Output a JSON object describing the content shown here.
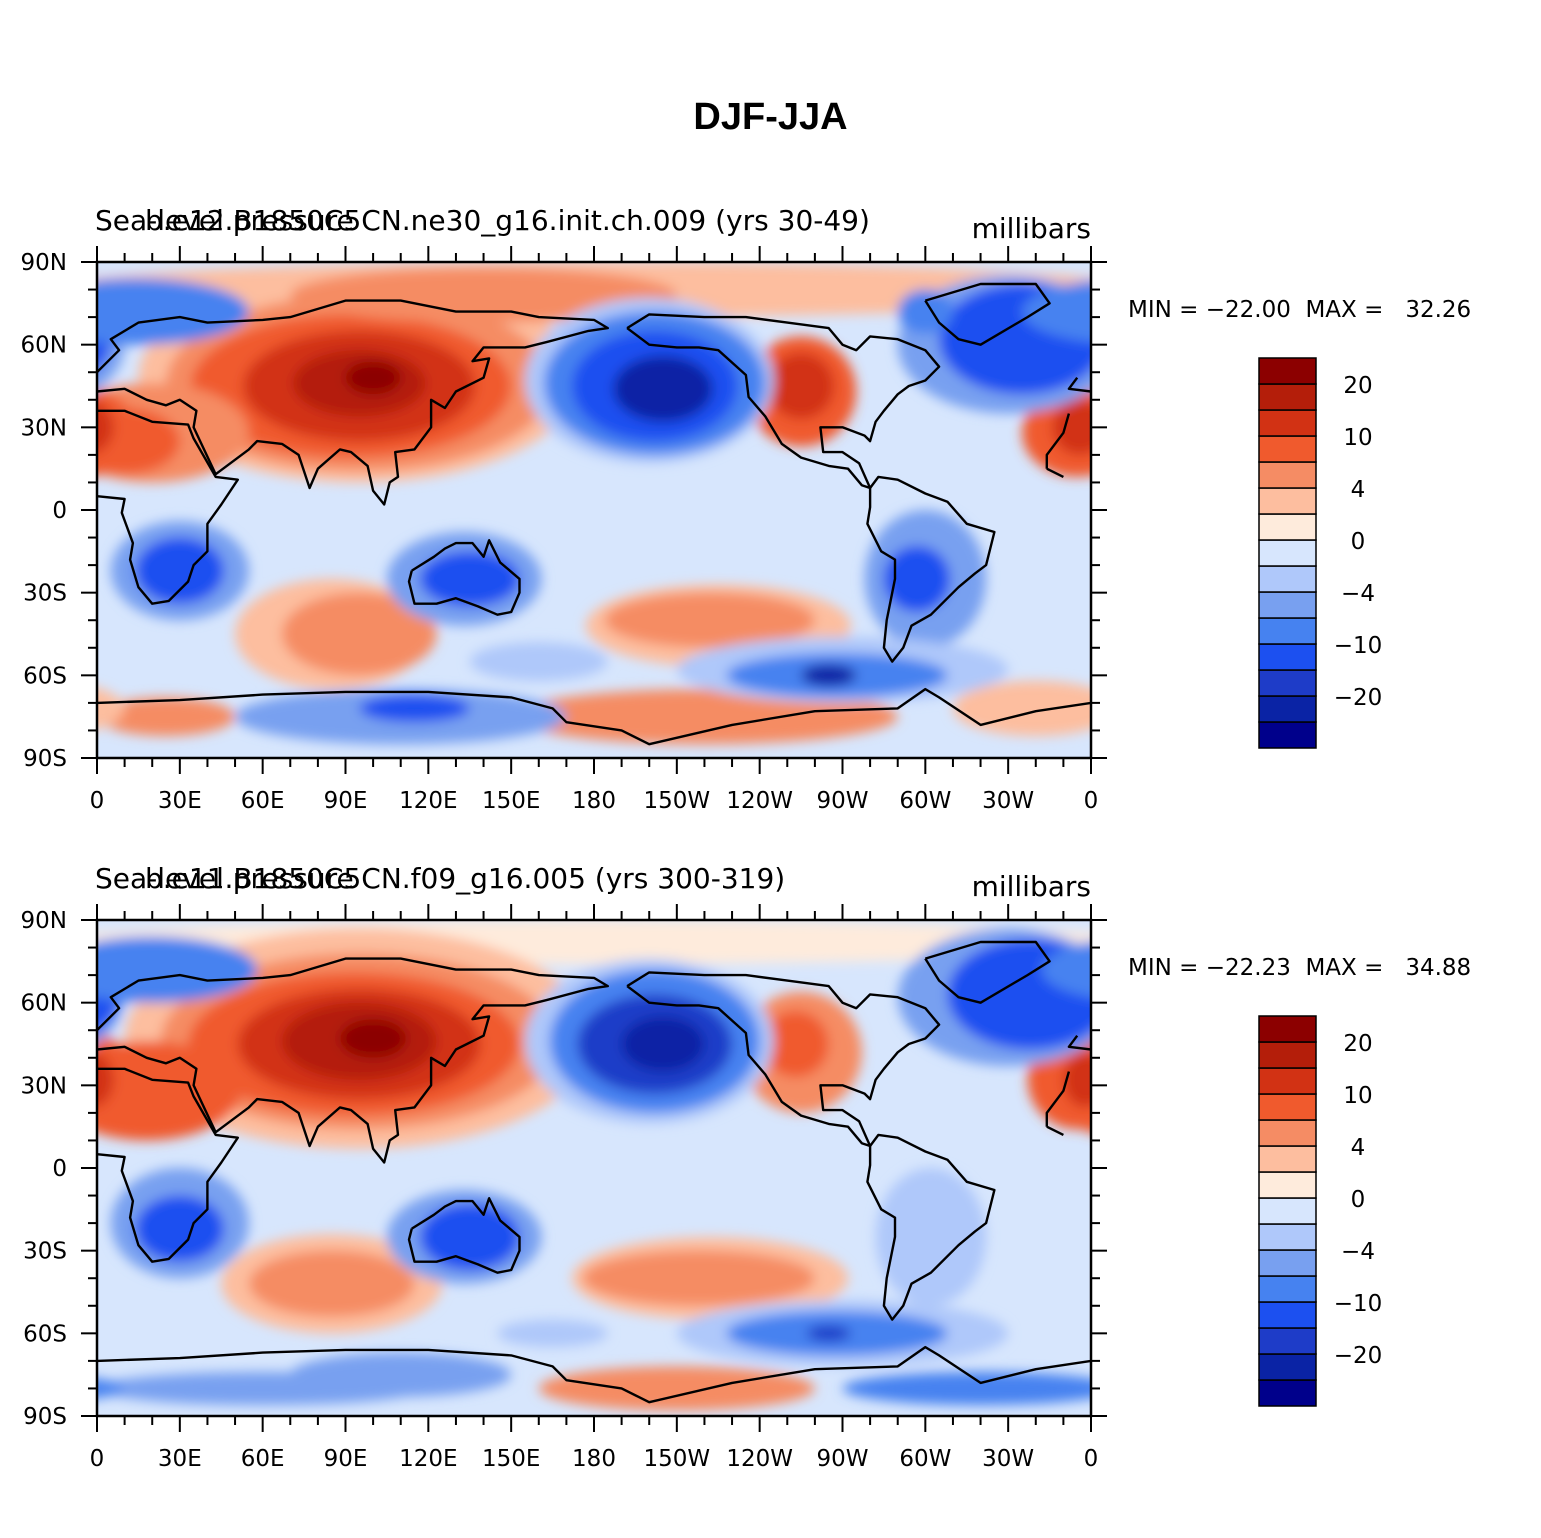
{
  "title": "DJF-JJA",
  "panels": [
    {
      "left_title": "Sea-level pressure",
      "center_title": "b.e12.B1850C5CN.ne30_g16.init.ch.009 (yrs 30-49)",
      "right_title": "millibars",
      "min_label": "MIN = −22.00",
      "max_label": "MAX =   32.26"
    },
    {
      "left_title": "Sea-level pressure",
      "center_title": "b.e11.B1850C5CN.f09_g16.005 (yrs 300-319)",
      "right_title": "millibars",
      "min_label": "MIN = −22.23",
      "max_label": "MAX =   34.88"
    }
  ],
  "axes": {
    "lon_labels": [
      "0",
      "30E",
      "60E",
      "90E",
      "120E",
      "150E",
      "180",
      "150W",
      "120W",
      "90W",
      "60W",
      "30W",
      "0"
    ],
    "lat_labels": [
      "90N",
      "60N",
      "30N",
      "0",
      "30S",
      "60S",
      "90S"
    ]
  },
  "colorbar": {
    "colors": [
      "#00008b",
      "#0a23a5",
      "#1e3cc8",
      "#1c50f0",
      "#4682f0",
      "#78a0f0",
      "#afc8fa",
      "#d7e6fd",
      "#feebdc",
      "#fdbe9f",
      "#f58c64",
      "#f05a2d",
      "#d23214",
      "#b41e0a",
      "#8c0000"
    ],
    "tick_labels": [
      "−20",
      "−10",
      "−4",
      "0",
      "4",
      "10",
      "20"
    ]
  },
  "map_features": {
    "high_pressure": [
      "Asian continent",
      "North Atlantic (Azores)",
      "South Indian Ocean",
      "South Pacific",
      "North Pacific high-latitude"
    ],
    "low_pressure": [
      "North Pacific (Aleutian)",
      "North Atlantic (Icelandic)",
      "Australia",
      "Southern Africa",
      "South America",
      "Southern Ocean"
    ]
  }
}
